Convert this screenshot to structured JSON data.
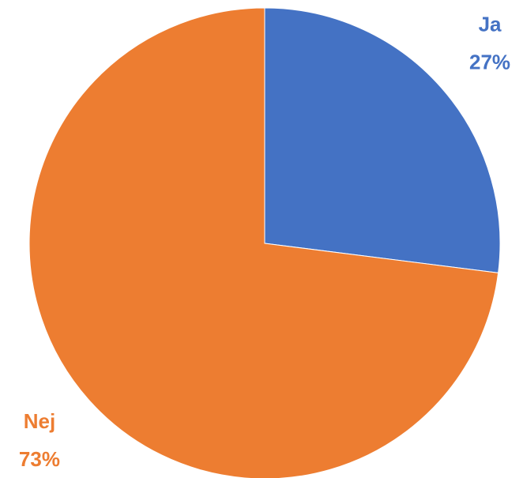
{
  "chart_data": {
    "type": "pie",
    "categories": [
      "Ja",
      "Nej"
    ],
    "values": [
      27,
      73
    ],
    "value_labels": [
      "27%",
      "73%"
    ],
    "colors": [
      "#4472c4",
      "#ed7d31"
    ]
  }
}
